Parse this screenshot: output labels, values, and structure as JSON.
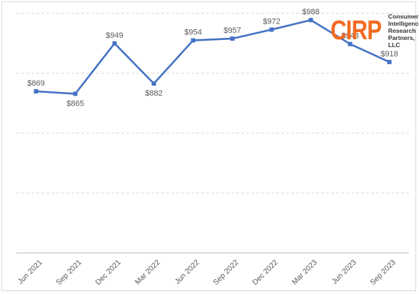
{
  "logo": {
    "mark": "CIRP",
    "lines": [
      "Consumer",
      "Intelligence",
      "Research",
      "Partners, LLC"
    ],
    "color": "#f26b21"
  },
  "chart_data": {
    "type": "line",
    "title": "",
    "xlabel": "",
    "ylabel": "",
    "categories": [
      "Jun 2021",
      "Sep 2021",
      "Dec 2021",
      "Mar 2022",
      "Jun 2022",
      "Sep 2022",
      "Dec 2022",
      "Mar 2023",
      "Jun 2023",
      "Sep 2023"
    ],
    "series": [
      {
        "values": [
          869,
          865,
          949,
          882,
          954,
          957,
          972,
          988,
          948,
          918
        ],
        "labels": [
          "$869",
          "$865",
          "$949",
          "$882",
          "$954",
          "$957",
          "$972",
          "$988",
          "$948",
          "$918"
        ],
        "color": "#4472c4"
      }
    ],
    "ylim": [
      600,
      1000
    ],
    "y_gridlines": [
      700,
      800,
      900,
      1000
    ],
    "grid": true,
    "y_tick_labels_shown": false,
    "label_positions": [
      "above",
      "below",
      "above",
      "below",
      "above",
      "above",
      "above",
      "above",
      "above",
      "above"
    ]
  }
}
